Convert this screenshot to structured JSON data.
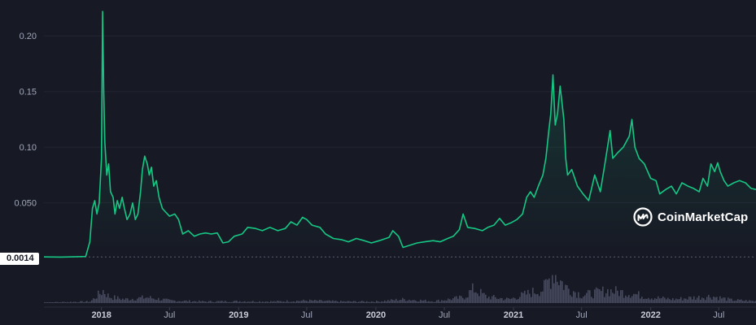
{
  "brand": {
    "name": "CoinMarketCap",
    "logo_icon": "coinmarketcap-logo-icon"
  },
  "current_price_label": "0.0014",
  "colors": {
    "background": "#171924",
    "line": "#16c784",
    "volume": "#4d5063",
    "grid": "#222531",
    "tick_text": "#a1a7bb"
  },
  "chart_data": {
    "type": "line",
    "title": "",
    "xlabel": "",
    "ylabel": "",
    "ylim": [
      -0.005,
      0.225
    ],
    "xlim": [
      "2017-08-01",
      "2022-10-08"
    ],
    "y_ticks": [
      "0.050",
      "0.10",
      "0.15",
      "0.20"
    ],
    "y_tick_values": [
      0.05,
      0.1,
      0.15,
      0.2
    ],
    "x_ticks": [
      "2018",
      "Jul",
      "2019",
      "Jul",
      "2020",
      "Jul",
      "2021",
      "Jul",
      "2022",
      "Jul"
    ],
    "x_tick_dates": [
      "2018-01-01",
      "2018-07-01",
      "2019-01-01",
      "2019-07-01",
      "2020-01-01",
      "2020-07-01",
      "2021-01-01",
      "2021-07-01",
      "2022-01-01",
      "2022-07-01"
    ],
    "current_price_line": 0.0014,
    "grid": true,
    "legend": "none",
    "series": [
      {
        "points": [
          [
            "2017-08-01",
            0.0014
          ],
          [
            "2017-09-15",
            0.0013
          ],
          [
            "2017-10-20",
            0.0015
          ],
          [
            "2017-11-20",
            0.0018
          ],
          [
            "2017-12-01",
            0.015
          ],
          [
            "2017-12-08",
            0.045
          ],
          [
            "2017-12-14",
            0.052
          ],
          [
            "2017-12-20",
            0.04
          ],
          [
            "2017-12-26",
            0.05
          ],
          [
            "2018-01-01",
            0.09
          ],
          [
            "2018-01-04",
            0.222
          ],
          [
            "2018-01-07",
            0.15
          ],
          [
            "2018-01-10",
            0.105
          ],
          [
            "2018-01-15",
            0.075
          ],
          [
            "2018-01-20",
            0.085
          ],
          [
            "2018-01-25",
            0.06
          ],
          [
            "2018-02-01",
            0.055
          ],
          [
            "2018-02-06",
            0.04
          ],
          [
            "2018-02-12",
            0.052
          ],
          [
            "2018-02-18",
            0.045
          ],
          [
            "2018-02-25",
            0.055
          ],
          [
            "2018-03-03",
            0.045
          ],
          [
            "2018-03-10",
            0.035
          ],
          [
            "2018-03-18",
            0.04
          ],
          [
            "2018-03-25",
            0.05
          ],
          [
            "2018-04-01",
            0.035
          ],
          [
            "2018-04-08",
            0.04
          ],
          [
            "2018-04-15",
            0.06
          ],
          [
            "2018-04-20",
            0.08
          ],
          [
            "2018-04-26",
            0.092
          ],
          [
            "2018-05-03",
            0.085
          ],
          [
            "2018-05-08",
            0.075
          ],
          [
            "2018-05-14",
            0.082
          ],
          [
            "2018-05-20",
            0.065
          ],
          [
            "2018-05-27",
            0.07
          ],
          [
            "2018-06-03",
            0.055
          ],
          [
            "2018-06-12",
            0.045
          ],
          [
            "2018-06-20",
            0.042
          ],
          [
            "2018-07-01",
            0.038
          ],
          [
            "2018-07-15",
            0.04
          ],
          [
            "2018-07-25",
            0.035
          ],
          [
            "2018-08-05",
            0.022
          ],
          [
            "2018-08-20",
            0.025
          ],
          [
            "2018-09-05",
            0.02
          ],
          [
            "2018-09-20",
            0.022
          ],
          [
            "2018-10-05",
            0.023
          ],
          [
            "2018-10-20",
            0.022
          ],
          [
            "2018-11-05",
            0.023
          ],
          [
            "2018-11-20",
            0.014
          ],
          [
            "2018-12-05",
            0.015
          ],
          [
            "2018-12-20",
            0.02
          ],
          [
            "2019-01-10",
            0.022
          ],
          [
            "2019-01-25",
            0.028
          ],
          [
            "2019-02-15",
            0.027
          ],
          [
            "2019-03-05",
            0.025
          ],
          [
            "2019-03-25",
            0.028
          ],
          [
            "2019-04-15",
            0.025
          ],
          [
            "2019-05-05",
            0.027
          ],
          [
            "2019-05-20",
            0.033
          ],
          [
            "2019-06-05",
            0.03
          ],
          [
            "2019-06-20",
            0.037
          ],
          [
            "2019-07-01",
            0.035
          ],
          [
            "2019-07-15",
            0.03
          ],
          [
            "2019-08-05",
            0.028
          ],
          [
            "2019-08-20",
            0.022
          ],
          [
            "2019-09-10",
            0.018
          ],
          [
            "2019-10-01",
            0.017
          ],
          [
            "2019-10-20",
            0.015
          ],
          [
            "2019-11-10",
            0.018
          ],
          [
            "2019-12-01",
            0.016
          ],
          [
            "2019-12-20",
            0.014
          ],
          [
            "2020-01-10",
            0.016
          ],
          [
            "2020-02-05",
            0.019
          ],
          [
            "2020-02-15",
            0.025
          ],
          [
            "2020-03-01",
            0.02
          ],
          [
            "2020-03-13",
            0.01
          ],
          [
            "2020-04-01",
            0.012
          ],
          [
            "2020-04-20",
            0.014
          ],
          [
            "2020-05-10",
            0.015
          ],
          [
            "2020-06-01",
            0.016
          ],
          [
            "2020-06-20",
            0.015
          ],
          [
            "2020-07-10",
            0.018
          ],
          [
            "2020-07-25",
            0.02
          ],
          [
            "2020-08-10",
            0.026
          ],
          [
            "2020-08-20",
            0.04
          ],
          [
            "2020-09-01",
            0.028
          ],
          [
            "2020-09-20",
            0.027
          ],
          [
            "2020-10-10",
            0.025
          ],
          [
            "2020-10-25",
            0.028
          ],
          [
            "2020-11-10",
            0.03
          ],
          [
            "2020-11-25",
            0.036
          ],
          [
            "2020-12-10",
            0.03
          ],
          [
            "2020-12-25",
            0.032
          ],
          [
            "2021-01-10",
            0.035
          ],
          [
            "2021-01-25",
            0.04
          ],
          [
            "2021-02-05",
            0.055
          ],
          [
            "2021-02-15",
            0.06
          ],
          [
            "2021-02-25",
            0.055
          ],
          [
            "2021-03-08",
            0.065
          ],
          [
            "2021-03-20",
            0.075
          ],
          [
            "2021-03-28",
            0.09
          ],
          [
            "2021-04-05",
            0.115
          ],
          [
            "2021-04-10",
            0.13
          ],
          [
            "2021-04-16",
            0.165
          ],
          [
            "2021-04-22",
            0.12
          ],
          [
            "2021-04-28",
            0.13
          ],
          [
            "2021-05-05",
            0.155
          ],
          [
            "2021-05-10",
            0.14
          ],
          [
            "2021-05-15",
            0.125
          ],
          [
            "2021-05-20",
            0.09
          ],
          [
            "2021-05-25",
            0.075
          ],
          [
            "2021-06-05",
            0.08
          ],
          [
            "2021-06-20",
            0.065
          ],
          [
            "2021-07-05",
            0.058
          ],
          [
            "2021-07-20",
            0.052
          ],
          [
            "2021-08-05",
            0.075
          ],
          [
            "2021-08-20",
            0.06
          ],
          [
            "2021-09-01",
            0.085
          ],
          [
            "2021-09-08",
            0.1
          ],
          [
            "2021-09-15",
            0.115
          ],
          [
            "2021-09-22",
            0.09
          ],
          [
            "2021-10-05",
            0.095
          ],
          [
            "2021-10-20",
            0.1
          ],
          [
            "2021-11-05",
            0.11
          ],
          [
            "2021-11-12",
            0.125
          ],
          [
            "2021-11-20",
            0.1
          ],
          [
            "2021-12-01",
            0.09
          ],
          [
            "2021-12-15",
            0.085
          ],
          [
            "2022-01-01",
            0.072
          ],
          [
            "2022-01-15",
            0.07
          ],
          [
            "2022-01-25",
            0.058
          ],
          [
            "2022-02-10",
            0.062
          ],
          [
            "2022-02-25",
            0.065
          ],
          [
            "2022-03-10",
            0.058
          ],
          [
            "2022-03-25",
            0.068
          ],
          [
            "2022-04-10",
            0.065
          ],
          [
            "2022-04-25",
            0.063
          ],
          [
            "2022-05-10",
            0.06
          ],
          [
            "2022-05-20",
            0.072
          ],
          [
            "2022-06-01",
            0.065
          ],
          [
            "2022-06-10",
            0.085
          ],
          [
            "2022-06-20",
            0.078
          ],
          [
            "2022-06-28",
            0.086
          ],
          [
            "2022-07-05",
            0.078
          ],
          [
            "2022-07-15",
            0.07
          ],
          [
            "2022-07-25",
            0.065
          ],
          [
            "2022-08-10",
            0.068
          ],
          [
            "2022-08-25",
            0.07
          ],
          [
            "2022-09-10",
            0.068
          ],
          [
            "2022-09-25",
            0.063
          ],
          [
            "2022-10-08",
            0.062
          ]
        ]
      }
    ],
    "volume": {
      "points": [
        [
          "2017-08-01",
          0.02
        ],
        [
          "2017-12-01",
          0.05
        ],
        [
          "2018-01-04",
          0.4
        ],
        [
          "2018-01-20",
          0.2
        ],
        [
          "2018-03-01",
          0.12
        ],
        [
          "2018-05-01",
          0.18
        ],
        [
          "2018-07-01",
          0.08
        ],
        [
          "2018-10-01",
          0.05
        ],
        [
          "2019-01-01",
          0.06
        ],
        [
          "2019-04-01",
          0.05
        ],
        [
          "2019-07-01",
          0.08
        ],
        [
          "2019-10-01",
          0.05
        ],
        [
          "2020-01-01",
          0.05
        ],
        [
          "2020-03-13",
          0.12
        ],
        [
          "2020-06-01",
          0.06
        ],
        [
          "2020-08-20",
          0.18
        ],
        [
          "2020-09-15",
          0.45
        ],
        [
          "2020-10-20",
          0.2
        ],
        [
          "2020-12-20",
          0.12
        ],
        [
          "2021-02-05",
          0.3
        ],
        [
          "2021-03-20",
          0.45
        ],
        [
          "2021-04-16",
          1.0
        ],
        [
          "2021-05-05",
          0.7
        ],
        [
          "2021-05-20",
          0.5
        ],
        [
          "2021-07-01",
          0.25
        ],
        [
          "2021-09-08",
          0.4
        ],
        [
          "2021-11-12",
          0.3
        ],
        [
          "2022-01-01",
          0.18
        ],
        [
          "2022-03-01",
          0.12
        ],
        [
          "2022-06-10",
          0.22
        ],
        [
          "2022-08-01",
          0.1
        ],
        [
          "2022-10-08",
          0.06
        ]
      ]
    }
  }
}
